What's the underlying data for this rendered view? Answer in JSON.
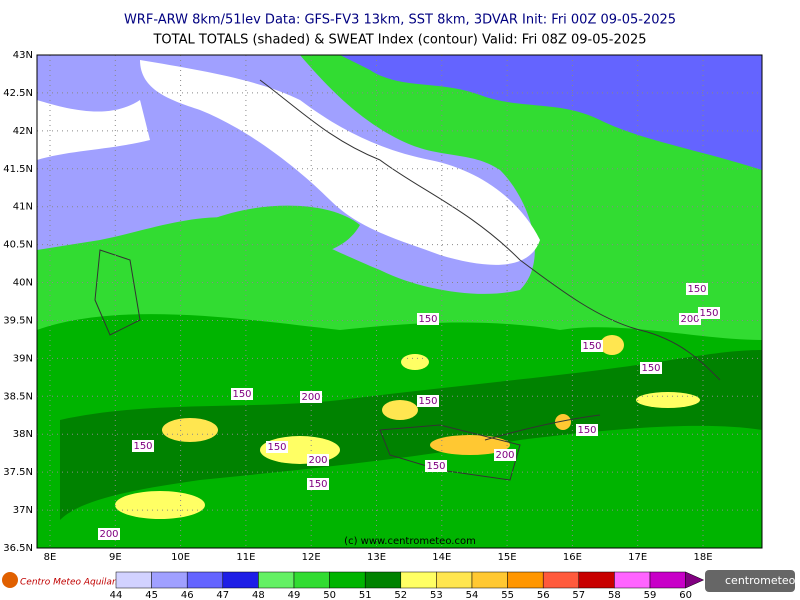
{
  "header": {
    "line1": "WRF-ARW 8km/51lev   Data: GFS-FV3 13km, SST 8km, 3DVAR   Init: Fri 00Z 09-05-2025",
    "line2": "TOTAL TOTALS (shaded) & SWEAT Index (contour)  Valid: Fri 08Z 09-05-2025"
  },
  "map": {
    "lat_labels": [
      "43N",
      "42.5N",
      "42N",
      "41.5N",
      "41N",
      "40.5N",
      "40N",
      "39.5N",
      "39N",
      "38.5N",
      "38N",
      "37.5N",
      "37N",
      "36.5N"
    ],
    "lon_labels": [
      "8E",
      "9E",
      "10E",
      "11E",
      "12E",
      "13E",
      "14E",
      "15E",
      "16E",
      "17E",
      "18E"
    ],
    "contour_labels": [
      150,
      150,
      200,
      150,
      150,
      150,
      150,
      200,
      150,
      150,
      150,
      150,
      200,
      200,
      150,
      150,
      200
    ],
    "credit": "(c) www.centrometeo.com"
  },
  "colorbar": {
    "ticks": [
      44,
      45,
      46,
      47,
      48,
      49,
      50,
      51,
      52,
      53,
      54,
      55,
      56,
      57,
      58,
      59,
      60
    ],
    "colors": [
      "#d2d2ff",
      "#a0a0ff",
      "#6464ff",
      "#1e1ee6",
      "#64f064",
      "#32dc32",
      "#00b400",
      "#008200",
      "#ffff64",
      "#ffe650",
      "#ffc832",
      "#ff9600",
      "#ff5a3c",
      "#c80000",
      "#ff64ff",
      "#c800c8"
    ]
  },
  "footer": {
    "left_logo": "Centro Meteo Aquilano",
    "right_logo": "centrometeo"
  }
}
